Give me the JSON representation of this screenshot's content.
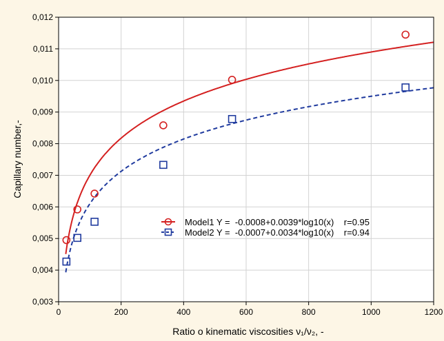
{
  "chart_data": {
    "type": "scatter",
    "title": "",
    "xlabel": "Ratio o kinematic viscosities ν₁/ν₂, -",
    "ylabel": "Capillary number,-",
    "xlim": [
      0,
      1200
    ],
    "ylim": [
      0.003,
      0.012
    ],
    "xticks": [
      0,
      200,
      400,
      600,
      800,
      1000,
      1200
    ],
    "xtick_labels": [
      "0",
      "200",
      "400",
      "600",
      "800",
      "1000",
      "1200"
    ],
    "yticks": [
      0.003,
      0.004,
      0.005,
      0.006,
      0.007,
      0.008,
      0.009,
      0.01,
      0.011,
      0.012
    ],
    "ytick_labels": [
      "0,003",
      "0,004",
      "0,005",
      "0,006",
      "0,007",
      "0,008",
      "0,009",
      "0,010",
      "0,011",
      "0,012"
    ],
    "grid": true,
    "legend_position": "center-right",
    "series": [
      {
        "name": "Model1 Y =  -0.0008+0.0039*log10(x)    r=0.95",
        "marker": "circle",
        "color": "#d42020",
        "line_style": "solid",
        "fit": {
          "a": -0.0008,
          "b": 0.0039
        },
        "x": [
          25,
          60,
          115,
          335,
          555,
          1110
        ],
        "y": [
          0.00495,
          0.00592,
          0.00642,
          0.00858,
          0.01002,
          0.01145
        ]
      },
      {
        "name": "Model2 Y =  -0.0007+0.0034*log10(x)    r=0.94",
        "marker": "square",
        "color": "#1f3a9e",
        "line_style": "dashed",
        "fit": {
          "a": -0.0007,
          "b": 0.0034
        },
        "x": [
          25,
          60,
          115,
          335,
          555,
          1110
        ],
        "y": [
          0.00427,
          0.00502,
          0.00553,
          0.00733,
          0.00878,
          0.00978
        ]
      }
    ]
  }
}
